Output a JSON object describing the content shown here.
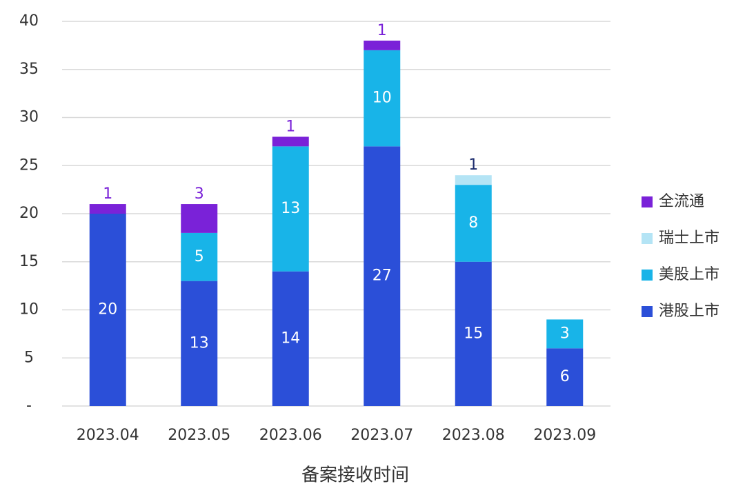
{
  "chart_data": {
    "type": "stacked_bar",
    "x_label": "备案接收时间",
    "categories": [
      "2023.04",
      "2023.05",
      "2023.06",
      "2023.07",
      "2023.08",
      "2023.09"
    ],
    "series": [
      {
        "name": "港股上市",
        "color": "#2b4fd8",
        "values": [
          20,
          13,
          14,
          27,
          15,
          6
        ]
      },
      {
        "name": "美股上市",
        "color": "#18b4e8",
        "values": [
          null,
          5,
          13,
          10,
          8,
          3
        ]
      },
      {
        "name": "瑞士上市",
        "color": "#b4e4f5",
        "values": [
          null,
          null,
          null,
          null,
          1,
          null
        ]
      },
      {
        "name": "全流通",
        "color": "#7a22d8",
        "values": [
          1,
          3,
          1,
          1,
          null,
          null
        ]
      }
    ],
    "ylim": [
      0,
      40
    ],
    "yticks": [
      {
        "value": 0,
        "label": "-"
      },
      5,
      10,
      15,
      20,
      25,
      30,
      35,
      40
    ],
    "grid": true,
    "legend": "right"
  }
}
